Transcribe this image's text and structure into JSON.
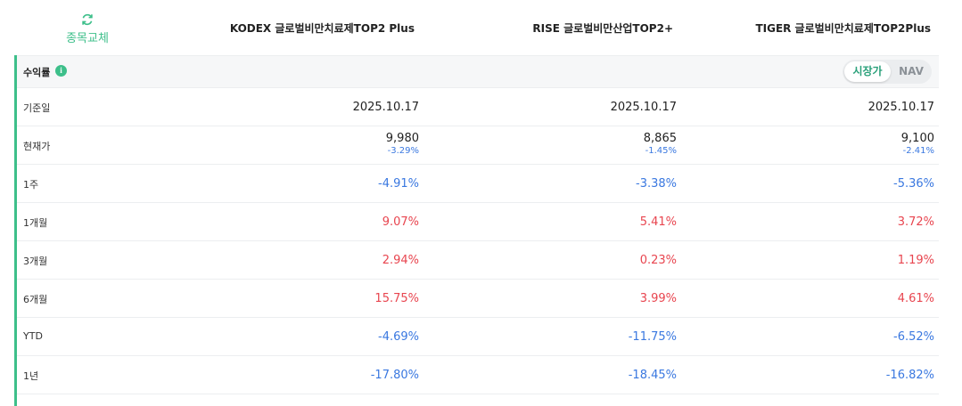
{
  "header": {
    "swap_label": "종목교체",
    "columns": [
      "KODEX 글로벌비만치료제TOP2 Plus",
      "RISE 글로벌비만산업TOP2+",
      "TIGER 글로벌비만치료제TOP2Plus"
    ]
  },
  "section": {
    "title": "수익률",
    "info_icon": "info-icon",
    "toggle": {
      "active": "시장가",
      "inactive": "NAV"
    }
  },
  "colors": {
    "accent": "#3dbf8a",
    "negative": "#3a78e0",
    "positive": "#e8454f"
  },
  "rows": {
    "base_date": {
      "label": "기준일",
      "values": [
        "2025.10.17",
        "2025.10.17",
        "2025.10.17"
      ]
    },
    "price": {
      "label": "현재가",
      "values": [
        "9,980",
        "8,865",
        "9,100"
      ],
      "changes": [
        "-3.29%",
        "-1.45%",
        "-2.41%"
      ]
    },
    "w1": {
      "label": "1주",
      "values": [
        "-4.91%",
        "-3.38%",
        "-5.36%"
      ]
    },
    "m1": {
      "label": "1개월",
      "values": [
        "9.07%",
        "5.41%",
        "3.72%"
      ]
    },
    "m3": {
      "label": "3개월",
      "values": [
        "2.94%",
        "0.23%",
        "1.19%"
      ]
    },
    "m6": {
      "label": "6개월",
      "values": [
        "15.75%",
        "3.99%",
        "4.61%"
      ]
    },
    "ytd": {
      "label": "YTD",
      "values": [
        "-4.69%",
        "-11.75%",
        "-6.52%"
      ]
    },
    "y1": {
      "label": "1년",
      "values": [
        "-17.80%",
        "-18.45%",
        "-16.82%"
      ]
    }
  }
}
